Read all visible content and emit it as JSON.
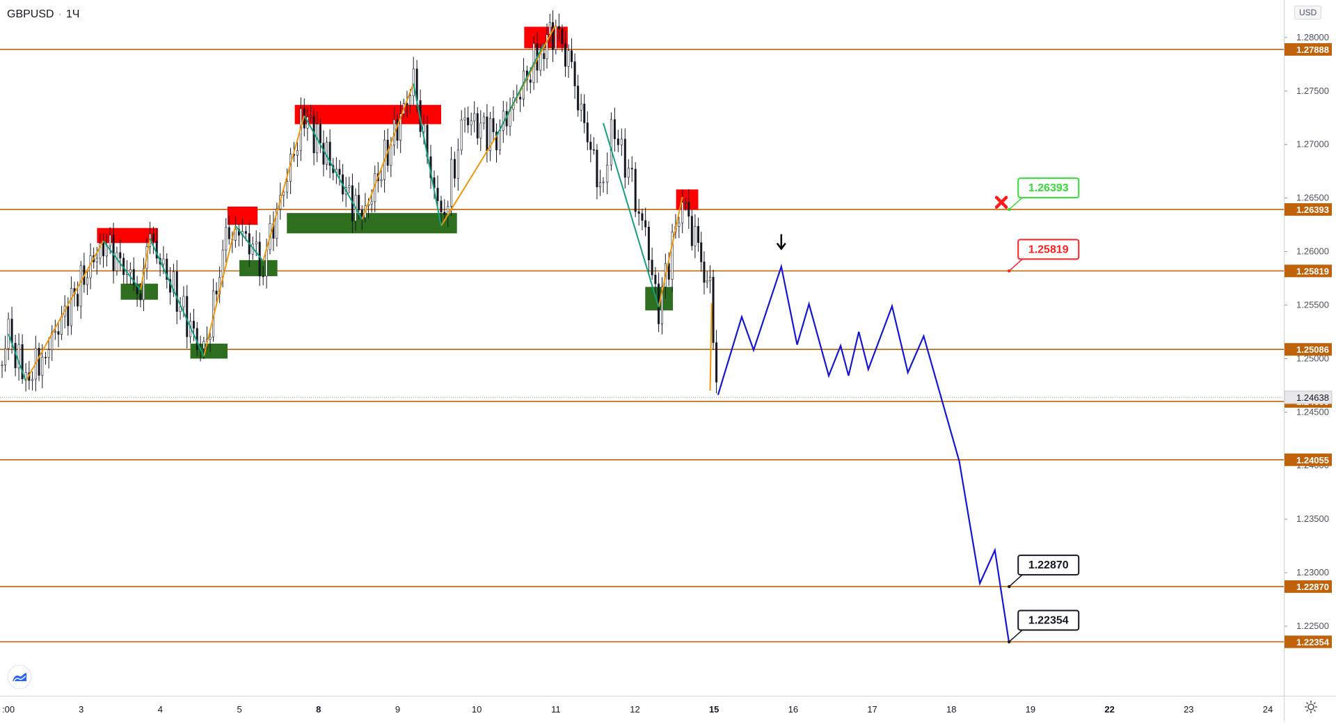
{
  "header": {
    "symbol": "GBPUSD",
    "interval": "1Ч",
    "dot": "·"
  },
  "currency_label": "USD",
  "colors": {
    "level_line": "#c0620a",
    "level_tag_bg": "#c0620a",
    "resistance_zone": "#ff0000",
    "support_zone": "#2d6e1f",
    "zigzag_up": "#f0960a",
    "zigzag_down": "#139f7f",
    "forecast": "#1515d6",
    "invalidation_mark": "#ff1a1a",
    "callout_green": "#33dd33",
    "callout_red": "#ff2020",
    "callout_black": "#131722",
    "current_price_bg": "#e8e8ea"
  },
  "chart_data": {
    "type": "line",
    "title": "GBPUSD · 1Ч",
    "price_axis": {
      "ticks": [
        "1.28000",
        "1.27500",
        "1.27000",
        "1.26500",
        "1.26000",
        "1.25500",
        "1.25000",
        "1.24500",
        "1.24000",
        "1.23500",
        "1.23000",
        "1.22500"
      ],
      "ylim": [
        1.2185,
        1.2835
      ]
    },
    "time_axis": {
      "ticks": [
        {
          "label": ":00",
          "day": 2.0,
          "bold": false
        },
        {
          "label": "3",
          "day": 3.0,
          "bold": false
        },
        {
          "label": "4",
          "day": 4.0,
          "bold": false
        },
        {
          "label": "5",
          "day": 5.0,
          "bold": false
        },
        {
          "label": "8",
          "day": 6.0,
          "bold": true
        },
        {
          "label": "9",
          "day": 7.0,
          "bold": false
        },
        {
          "label": "10",
          "day": 8.0,
          "bold": false
        },
        {
          "label": "11",
          "day": 9.0,
          "bold": false
        },
        {
          "label": "12",
          "day": 10.0,
          "bold": false
        },
        {
          "label": "15",
          "day": 11.0,
          "bold": true
        },
        {
          "label": "16",
          "day": 12.0,
          "bold": false
        },
        {
          "label": "17",
          "day": 13.0,
          "bold": false
        },
        {
          "label": "18",
          "day": 14.0,
          "bold": false
        },
        {
          "label": "19",
          "day": 15.0,
          "bold": false
        },
        {
          "label": "22",
          "day": 16.0,
          "bold": true
        },
        {
          "label": "23",
          "day": 17.0,
          "bold": false
        },
        {
          "label": "24",
          "day": 18.0,
          "bold": false
        }
      ]
    },
    "levels": [
      "1.27888",
      "1.26393",
      "1.25819",
      "1.25086",
      "1.24600",
      "1.24055",
      "1.22870",
      "1.22354"
    ],
    "current_price": "1.24638",
    "price_path": [
      [
        2.0,
        1.2487
      ],
      [
        2.08,
        1.2523
      ],
      [
        2.3,
        1.2479
      ],
      [
        2.55,
        1.2507
      ],
      [
        3.28,
        1.261
      ],
      [
        3.75,
        1.2564
      ],
      [
        3.87,
        1.2612
      ],
      [
        4.55,
        1.2502
      ],
      [
        4.83,
        1.2612
      ],
      [
        4.95,
        1.2624
      ],
      [
        5.3,
        1.2591
      ],
      [
        5.82,
        1.2727
      ],
      [
        6.55,
        1.263
      ],
      [
        7.2,
        1.2757
      ],
      [
        7.55,
        1.2624
      ],
      [
        7.85,
        1.2725
      ],
      [
        8.25,
        1.2708
      ],
      [
        8.85,
        1.2794
      ],
      [
        9.0,
        1.2812
      ],
      [
        9.2,
        1.2765
      ],
      [
        9.6,
        1.265
      ],
      [
        9.7,
        1.272
      ],
      [
        10.05,
        1.2647
      ],
      [
        10.3,
        1.2548
      ],
      [
        10.6,
        1.2651
      ],
      [
        10.8,
        1.2598
      ],
      [
        10.95,
        1.256
      ],
      [
        11.03,
        1.2478
      ]
    ],
    "zones": [
      {
        "kind": "resistance",
        "x": [
          3.2,
          3.97
        ],
        "y": [
          1.2608,
          1.2622
        ]
      },
      {
        "kind": "resistance",
        "x": [
          4.85,
          5.23
        ],
        "y": [
          1.2625,
          1.2642
        ]
      },
      {
        "kind": "resistance",
        "x": [
          5.7,
          7.55
        ],
        "y": [
          1.2719,
          1.2737
        ]
      },
      {
        "kind": "resistance",
        "x": [
          8.6,
          9.15
        ],
        "y": [
          1.279,
          1.281
        ]
      },
      {
        "kind": "resistance",
        "x": [
          10.52,
          10.8
        ],
        "y": [
          1.2639,
          1.2658
        ]
      },
      {
        "kind": "support",
        "x": [
          3.5,
          3.97
        ],
        "y": [
          1.2555,
          1.257
        ]
      },
      {
        "kind": "support",
        "x": [
          4.38,
          4.85
        ],
        "y": [
          1.25,
          1.2514
        ]
      },
      {
        "kind": "support",
        "x": [
          5.0,
          5.48
        ],
        "y": [
          1.2577,
          1.2592
        ]
      },
      {
        "kind": "support",
        "x": [
          5.6,
          7.75
        ],
        "y": [
          1.2617,
          1.2636
        ]
      },
      {
        "kind": "support",
        "x": [
          10.13,
          10.48
        ],
        "y": [
          1.2545,
          1.2567
        ]
      }
    ],
    "zigzag_up": [
      [
        [
          2.3,
          1.2479
        ],
        [
          3.28,
          1.261
        ]
      ],
      [
        [
          3.75,
          1.2564
        ],
        [
          3.87,
          1.2612
        ]
      ],
      [
        [
          4.55,
          1.2502
        ],
        [
          4.95,
          1.2624
        ]
      ],
      [
        [
          5.3,
          1.2591
        ],
        [
          5.82,
          1.2727
        ]
      ],
      [
        [
          6.55,
          1.263
        ],
        [
          7.2,
          1.2757
        ]
      ],
      [
        [
          7.55,
          1.2624
        ],
        [
          8.25,
          1.2708
        ]
      ],
      [
        [
          8.25,
          1.2708
        ],
        [
          9.0,
          1.2812
        ]
      ],
      [
        [
          10.3,
          1.2548
        ],
        [
          10.6,
          1.2651
        ]
      ],
      [
        [
          10.95,
          1.247
        ],
        [
          10.97,
          1.2552
        ]
      ]
    ],
    "zigzag_down": [
      [
        [
          2.08,
          1.2523
        ],
        [
          2.3,
          1.2479
        ]
      ],
      [
        [
          3.28,
          1.261
        ],
        [
          3.75,
          1.2564
        ]
      ],
      [
        [
          3.87,
          1.2612
        ],
        [
          4.55,
          1.2502
        ]
      ],
      [
        [
          4.95,
          1.2624
        ],
        [
          5.3,
          1.2591
        ]
      ],
      [
        [
          5.82,
          1.2727
        ],
        [
          6.55,
          1.263
        ]
      ],
      [
        [
          7.2,
          1.2757
        ],
        [
          7.55,
          1.2624
        ]
      ],
      [
        [
          8.85,
          1.2794
        ],
        [
          8.25,
          1.2708
        ]
      ],
      [
        [
          9.6,
          1.272
        ],
        [
          10.3,
          1.2548
        ]
      ]
    ],
    "forecast_path": [
      [
        11.05,
        1.2466
      ],
      [
        11.35,
        1.2539
      ],
      [
        11.5,
        1.2508
      ],
      [
        11.85,
        1.2586
      ],
      [
        12.05,
        1.2513
      ],
      [
        12.2,
        1.2551
      ],
      [
        12.45,
        1.2484
      ],
      [
        12.6,
        1.2512
      ],
      [
        12.7,
        1.2484
      ],
      [
        12.83,
        1.2525
      ],
      [
        12.95,
        1.249
      ],
      [
        13.25,
        1.2549
      ],
      [
        13.45,
        1.2487
      ],
      [
        13.65,
        1.2521
      ],
      [
        14.1,
        1.2404
      ],
      [
        14.36,
        1.229
      ],
      [
        14.55,
        1.2321
      ],
      [
        14.73,
        1.2234
      ]
    ],
    "annotations": {
      "arrow_down": {
        "day": 11.85,
        "price": 1.2598
      },
      "x_mark": {
        "day": 14.72,
        "price": 1.2646
      },
      "callouts": [
        {
          "text": "1.26393",
          "style": "green",
          "anchor": [
            14.73,
            1.26393
          ]
        },
        {
          "text": "1.25819",
          "style": "red",
          "anchor": [
            14.73,
            1.25819
          ]
        },
        {
          "text": "1.22870",
          "style": "black",
          "anchor": [
            14.73,
            1.2287
          ]
        },
        {
          "text": "1.22354",
          "style": "black",
          "anchor": [
            14.73,
            1.22354
          ]
        }
      ]
    }
  }
}
